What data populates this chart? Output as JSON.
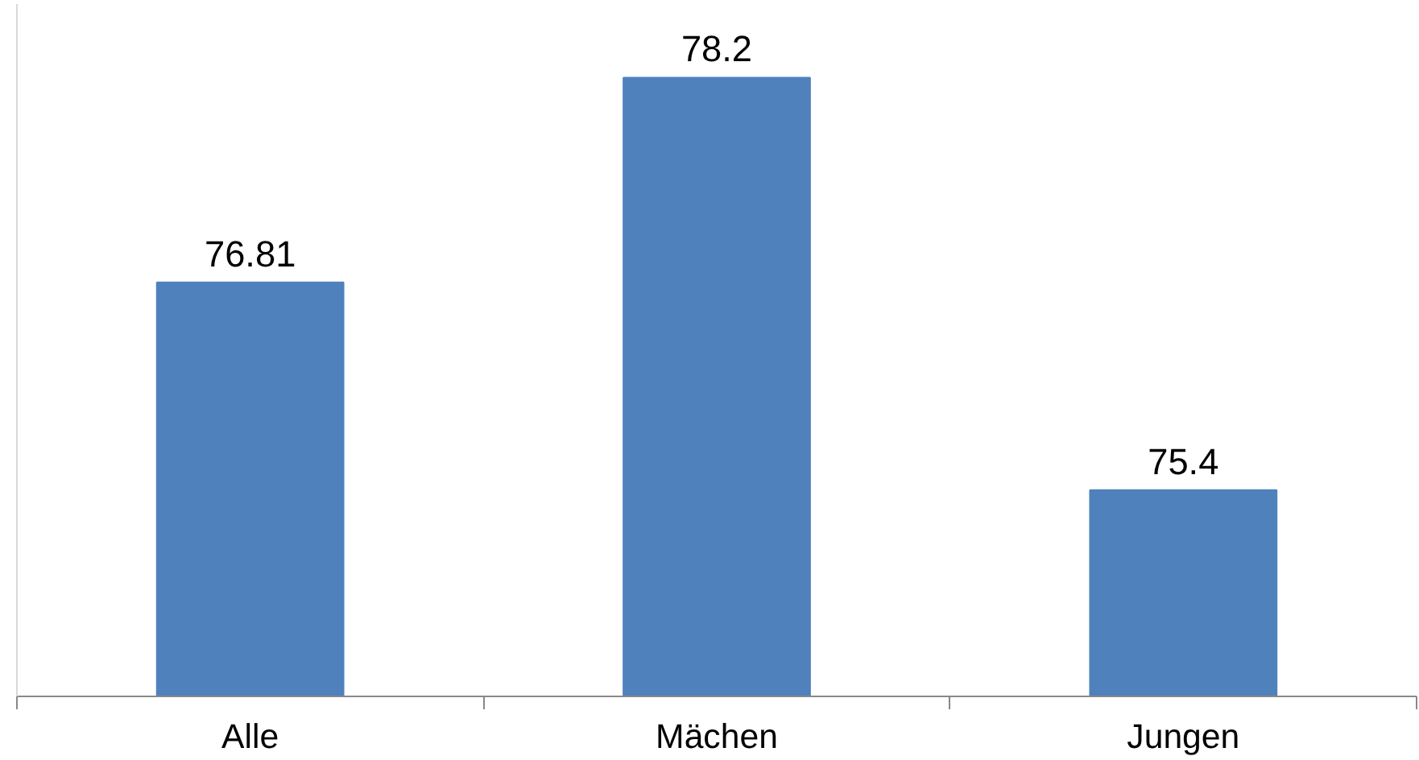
{
  "chart_data": {
    "type": "bar",
    "categories": [
      "Alle",
      "Mächen",
      "Jungen"
    ],
    "values": [
      76.81,
      78.2,
      75.4
    ],
    "color": "#4f81bd",
    "ylim": [
      74,
      78.7
    ],
    "data_labels": true,
    "tick_labels": "x",
    "grid": false
  }
}
